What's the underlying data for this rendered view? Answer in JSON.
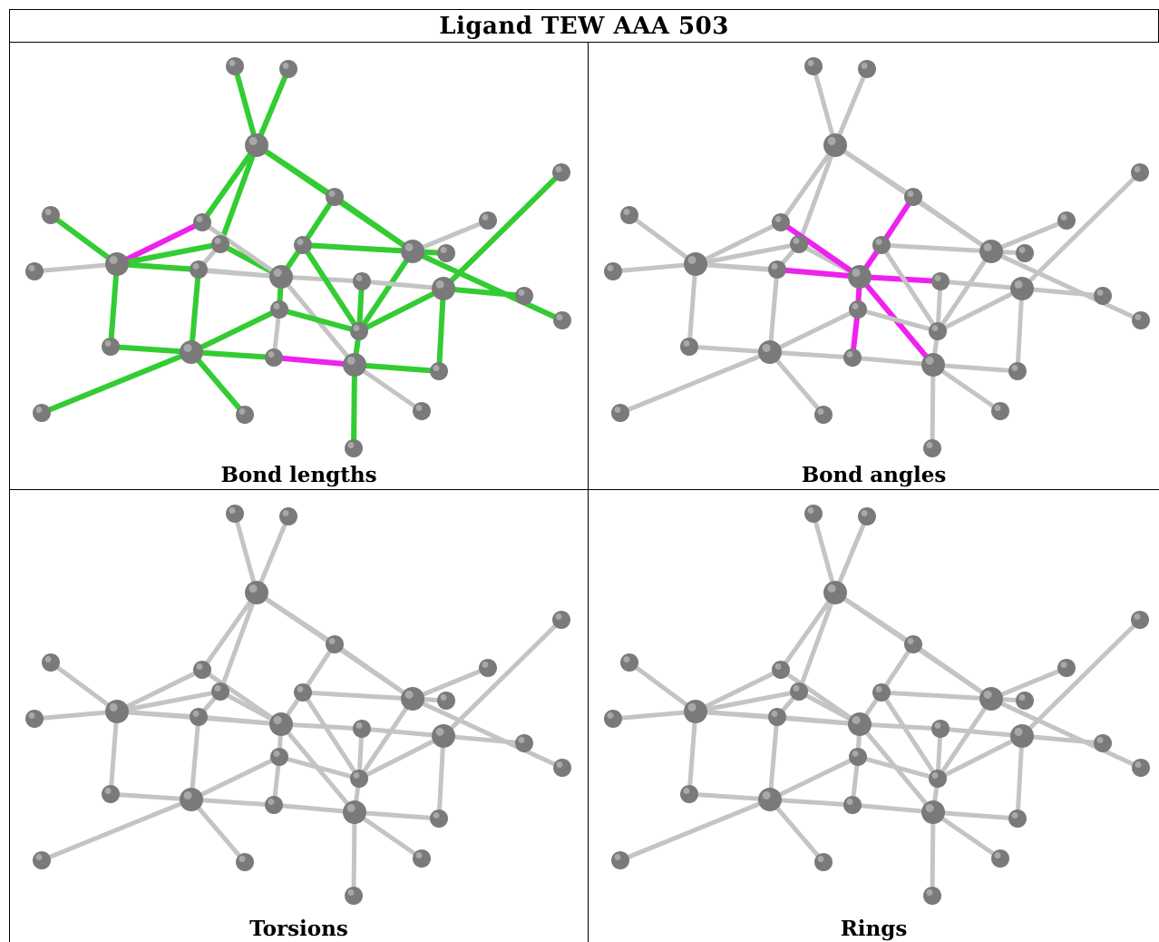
{
  "title": "Ligand TEW AAA 503",
  "panels": [
    {
      "caption": "Bond lengths"
    },
    {
      "caption": "Bond angles"
    },
    {
      "caption": "Torsions"
    },
    {
      "caption": "Rings"
    }
  ],
  "colors": {
    "atom": "#7a7a7a",
    "bond_default": "#c4c4c4",
    "bond_green": "#33cc33",
    "bond_magenta": "#ee22ee"
  }
}
